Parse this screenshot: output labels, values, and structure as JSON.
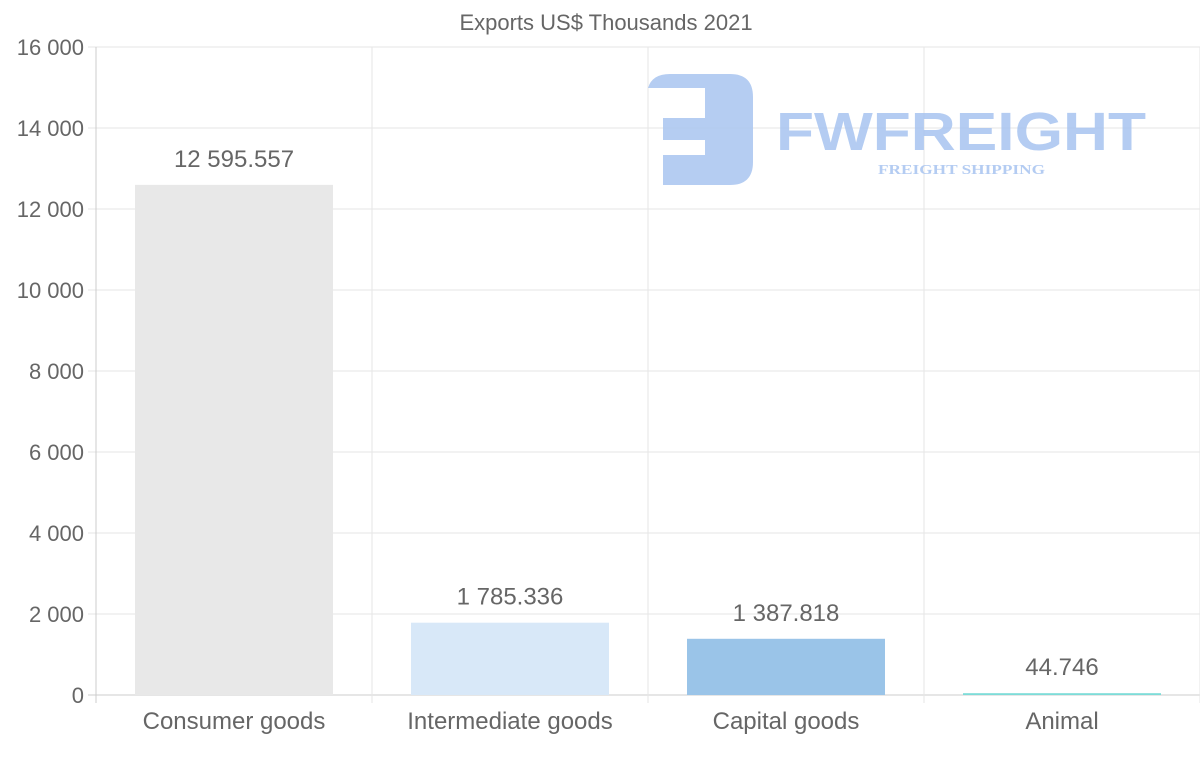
{
  "chart_data": {
    "type": "bar",
    "title": "Exports US$ Thousands 2021",
    "categories": [
      "Consumer goods",
      "Intermediate goods",
      "Capital goods",
      "Animal"
    ],
    "values": [
      12595.557,
      1785.336,
      1387.818,
      44.746
    ],
    "value_labels": [
      "12 595.557",
      "1 785.336",
      "1 387.818",
      "44.746"
    ],
    "colors": [
      "#e8e8e8",
      "#d8e8f8",
      "#9ac4e8",
      "#7ddcd8"
    ],
    "ylim": [
      0,
      16000
    ],
    "yticks": [
      0,
      2000,
      4000,
      6000,
      8000,
      10000,
      12000,
      14000,
      16000
    ],
    "ytick_labels": [
      "0",
      "2 000",
      "4 000",
      "6 000",
      "8 000",
      "10 000",
      "12 000",
      "14 000",
      "16 000"
    ],
    "xlabel": "",
    "ylabel": "",
    "grid": true,
    "legend": "none"
  },
  "watermark": {
    "brand": "FWFREIGHT",
    "tagline": "FREIGHT SHIPPING",
    "color": "#a8c4f0"
  }
}
